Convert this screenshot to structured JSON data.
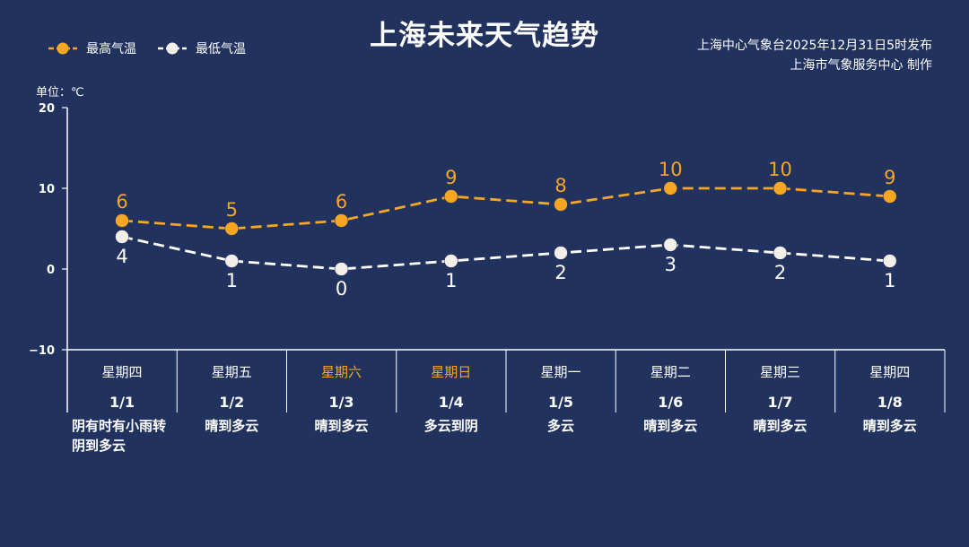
{
  "title": "上海未来天气趋势",
  "legend": {
    "high_label": "最高气温",
    "low_label": "最低气温"
  },
  "publisher": {
    "line1": "上海中心气象台2025年12月31日5时发布",
    "line2": "上海市气象服务中心 制作"
  },
  "unit_label": "单位：℃",
  "colors": {
    "background": "#22325f",
    "high": "#f5a623",
    "low": "#ffffff",
    "weekend": "#f5a623"
  },
  "chart_data": {
    "type": "line",
    "title": "上海未来天气趋势",
    "ylabel": "单位：℃",
    "ylim": [
      -10,
      20
    ],
    "yticks": [
      20,
      10,
      0,
      -10
    ],
    "categories": [
      "1/1",
      "1/2",
      "1/3",
      "1/4",
      "1/5",
      "1/6",
      "1/7",
      "1/8"
    ],
    "series": [
      {
        "name": "最高气温",
        "values": [
          6,
          5,
          6,
          9,
          8,
          10,
          10,
          9
        ]
      },
      {
        "name": "最低气温",
        "values": [
          4,
          1,
          0,
          1,
          2,
          3,
          2,
          1
        ]
      }
    ],
    "legend_position": "top-left",
    "grid": false
  },
  "days": [
    {
      "weekday": "星期四",
      "date": "1/1",
      "weather": "阴有时有小雨转阴到多云",
      "weekend": false
    },
    {
      "weekday": "星期五",
      "date": "1/2",
      "weather": "晴到多云",
      "weekend": false
    },
    {
      "weekday": "星期六",
      "date": "1/3",
      "weather": "晴到多云",
      "weekend": true
    },
    {
      "weekday": "星期日",
      "date": "1/4",
      "weather": "多云到阴",
      "weekend": true
    },
    {
      "weekday": "星期一",
      "date": "1/5",
      "weather": "多云",
      "weekend": false
    },
    {
      "weekday": "星期二",
      "date": "1/6",
      "weather": "晴到多云",
      "weekend": false
    },
    {
      "weekday": "星期三",
      "date": "1/7",
      "weather": "晴到多云",
      "weekend": false
    },
    {
      "weekday": "星期四",
      "date": "1/8",
      "weather": "晴到多云",
      "weekend": false
    }
  ]
}
